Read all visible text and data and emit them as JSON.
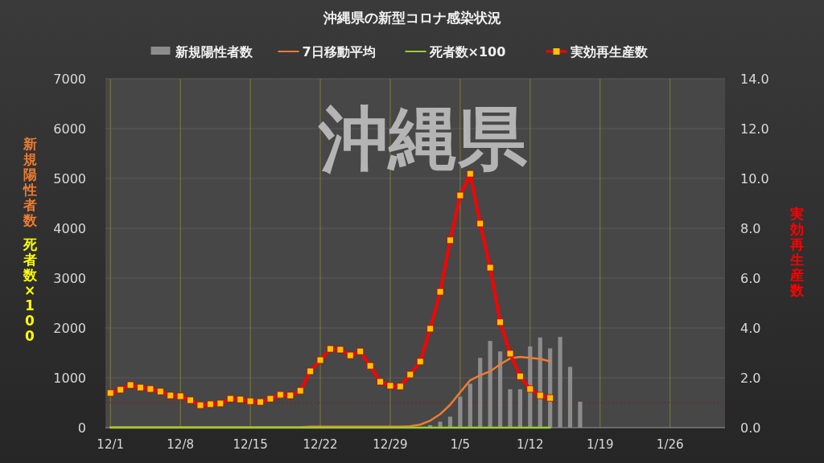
{
  "chart_data": {
    "type": "bar",
    "title": "沖縄県の新型コロナ感染状況",
    "ylabel": "新規陽性者数",
    "y2label": "実効再生産数",
    "annotations": [
      "沖縄県",
      "死者数×100"
    ],
    "categories": [
      "12/1",
      null,
      null,
      null,
      null,
      null,
      null,
      "12/8",
      null,
      null,
      null,
      null,
      null,
      null,
      "12/15",
      null,
      null,
      null,
      null,
      null,
      null,
      "12/22",
      null,
      null,
      null,
      null,
      null,
      null,
      "12/29",
      null,
      null,
      null,
      null,
      null,
      null,
      "1/5",
      null,
      null,
      null,
      null,
      null,
      null,
      "1/12",
      null,
      null,
      null,
      null,
      null,
      null,
      "1/19",
      null,
      null,
      null,
      null,
      null,
      null,
      "1/26",
      null,
      null,
      null,
      null,
      null
    ],
    "ylim": [
      0,
      7000
    ],
    "yticks": [
      0,
      1000,
      2000,
      3000,
      4000,
      5000,
      6000,
      7000
    ],
    "y2lim": [
      0,
      14
    ],
    "y2ticks": [
      {
        "value": 0,
        "label": "0.0"
      },
      {
        "value": 2,
        "label": "2.0"
      },
      {
        "value": 4,
        "label": "4.0"
      },
      {
        "value": 6,
        "label": "6.0"
      },
      {
        "value": 8,
        "label": "8.0"
      },
      {
        "value": 10,
        "label": "10.0"
      },
      {
        "value": 12,
        "label": "12.0"
      },
      {
        "value": 14,
        "label": "14.0"
      }
    ],
    "grid": true,
    "legend": "top",
    "ref_lines": [
      {
        "axis": "y2",
        "value": 1,
        "color": "#8b1a1a",
        "line_style": "dotted"
      }
    ],
    "series": [
      {
        "name": "新規陽性者数",
        "color": "#8c8c8c",
        "values": [
          null,
          null,
          null,
          null,
          null,
          null,
          null,
          null,
          null,
          null,
          null,
          null,
          null,
          null,
          null,
          null,
          null,
          null,
          null,
          null,
          null,
          null,
          null,
          null,
          null,
          null,
          null,
          null,
          null,
          null,
          null,
          null,
          50,
          120,
          220,
          620,
          880,
          1400,
          1740,
          1530,
          770,
          770,
          1630,
          1810,
          1590,
          1820,
          1220,
          520,
          null,
          null,
          null,
          null,
          null,
          null,
          null,
          null,
          null,
          null,
          null,
          null,
          null,
          null
        ]
      },
      {
        "name": "7日移動平均",
        "type": "line",
        "color": "#ed7d31",
        "marker": "none",
        "values": [
          10,
          10,
          10,
          10,
          10,
          10,
          10,
          10,
          10,
          10,
          10,
          10,
          10,
          10,
          10,
          10,
          10,
          10,
          10,
          10,
          20,
          20,
          20,
          20,
          20,
          20,
          20,
          20,
          20,
          20,
          30,
          60,
          140,
          270,
          460,
          710,
          950,
          1050,
          1130,
          1270,
          1390,
          1420,
          1400,
          1380,
          1330,
          null,
          null,
          null,
          null,
          null,
          null,
          null,
          null,
          null,
          null,
          null,
          null,
          null,
          null,
          null,
          null,
          null
        ]
      },
      {
        "name": "死者数×100",
        "type": "line",
        "color": "#9acd32",
        "marker": "none",
        "values": [
          0,
          0,
          0,
          0,
          0,
          0,
          0,
          0,
          0,
          0,
          0,
          0,
          0,
          0,
          0,
          0,
          0,
          0,
          0,
          0,
          0,
          0,
          0,
          0,
          0,
          0,
          0,
          0,
          0,
          0,
          0,
          0,
          0,
          0,
          0,
          0,
          0,
          0,
          0,
          0,
          0,
          0,
          0,
          0,
          0,
          null,
          null,
          null,
          null,
          null,
          null,
          null,
          null,
          null,
          null,
          null,
          null,
          null,
          null,
          null,
          null,
          null
        ]
      },
      {
        "name": "実効再生産数",
        "type": "line",
        "axis": "y2",
        "color": "#ff0000",
        "marker": "square",
        "values": [
          1.39,
          1.52,
          1.71,
          1.61,
          1.55,
          1.45,
          1.29,
          1.26,
          1.1,
          0.9,
          0.94,
          0.97,
          1.16,
          1.13,
          1.06,
          1.03,
          1.16,
          1.32,
          1.29,
          1.48,
          2.26,
          2.71,
          3.16,
          3.13,
          2.9,
          3.06,
          2.48,
          1.84,
          1.68,
          1.65,
          2.13,
          2.65,
          3.97,
          5.45,
          7.52,
          9.32,
          10.19,
          8.19,
          6.42,
          4.23,
          2.97,
          2.06,
          1.55,
          1.29,
          1.19,
          null,
          null,
          null,
          null,
          null,
          null,
          null,
          null,
          null,
          null,
          null,
          null,
          null,
          null,
          null,
          null,
          null
        ]
      }
    ]
  }
}
